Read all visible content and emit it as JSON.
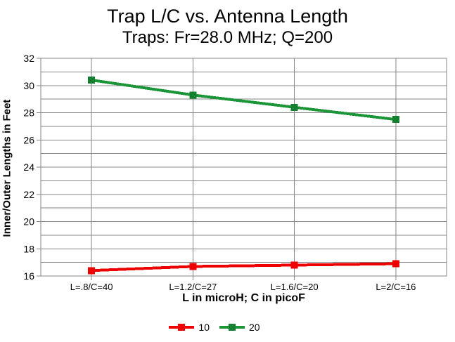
{
  "title": "Trap L/C vs. Antenna Length",
  "subtitle": "Traps: Fr=28.0 MHz; Q=200",
  "chart_data": {
    "type": "line",
    "categories": [
      "L=.8/C=40",
      "L=1.2/C=27",
      "L=1.6/C=20",
      "L=2/C=16"
    ],
    "series": [
      {
        "name": "10",
        "color": "#ee0000",
        "marker": "solid",
        "values": [
          16.4,
          16.7,
          16.8,
          16.9
        ]
      },
      {
        "name": "20",
        "color": "#1a9639",
        "marker": "checker",
        "values": [
          30.4,
          29.3,
          28.4,
          27.5
        ]
      }
    ],
    "xlabel": "L in microH; C in picoF",
    "ylabel": "Inner/Outer Lengths in Feet",
    "ylim": [
      16,
      32
    ],
    "y_ticks": [
      16,
      18,
      20,
      22,
      24,
      26,
      28,
      30,
      32
    ],
    "y_minor_step": 1,
    "grid": true,
    "legend_position": "bottom"
  },
  "colors": {
    "grid": "#848484",
    "axis": "#848484",
    "marker_checker_dark": "#0a6b26",
    "text": "#000000",
    "background": "#ffffff"
  }
}
